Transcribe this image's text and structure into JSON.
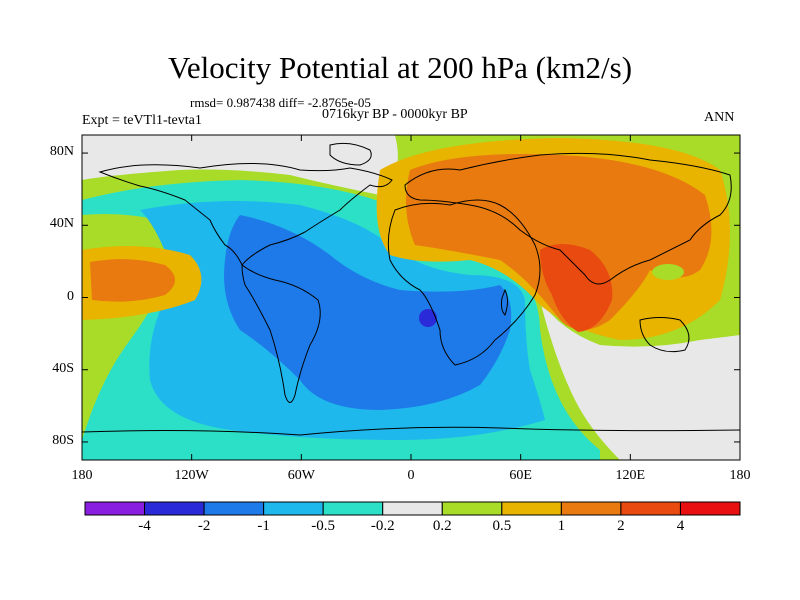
{
  "header": {
    "title": "Velocity Potential at 200 hPa (km2/s)",
    "stats": "rmsd= 0.987438 diff= -2.8765e-05",
    "period": "0716kyr BP - 0000kyr BP",
    "experiment": "Expt = teVTl1-tevta1",
    "season": "ANN"
  },
  "axes": {
    "lat_labels": [
      "80N",
      "40N",
      "0",
      "40S",
      "80S"
    ],
    "lat_values": [
      80,
      40,
      0,
      -40,
      -80
    ],
    "lon_labels": [
      "180",
      "120W",
      "60W",
      "0",
      "60E",
      "120E",
      "180"
    ],
    "lon_values": [
      -180,
      -120,
      -60,
      0,
      60,
      120,
      180
    ],
    "lon_range": [
      -180,
      180
    ],
    "lat_range": [
      -90,
      90
    ]
  },
  "colorbar": {
    "labels": [
      "-4",
      "-2",
      "-1",
      "-0.5",
      "-0.2",
      "0.2",
      "0.5",
      "1",
      "2",
      "4"
    ],
    "colors": [
      "#8a1ee0",
      "#2a2ad8",
      "#1e7ae8",
      "#1eb8ec",
      "#2ce0c8",
      "#e8e8e8",
      "#a8dc28",
      "#e8b400",
      "#e87a10",
      "#e84a10",
      "#e81010"
    ]
  },
  "fields": {
    "colors": {
      "lightgreen": "#a8dc28",
      "white": "#e8e8e8",
      "cyan": "#2ce0c8",
      "sky": "#1eb8ec",
      "blue": "#1e7ae8",
      "navy": "#2a2ad8",
      "gold": "#e8b400",
      "orange": "#e87a10",
      "redorange": "#e84a10"
    }
  }
}
